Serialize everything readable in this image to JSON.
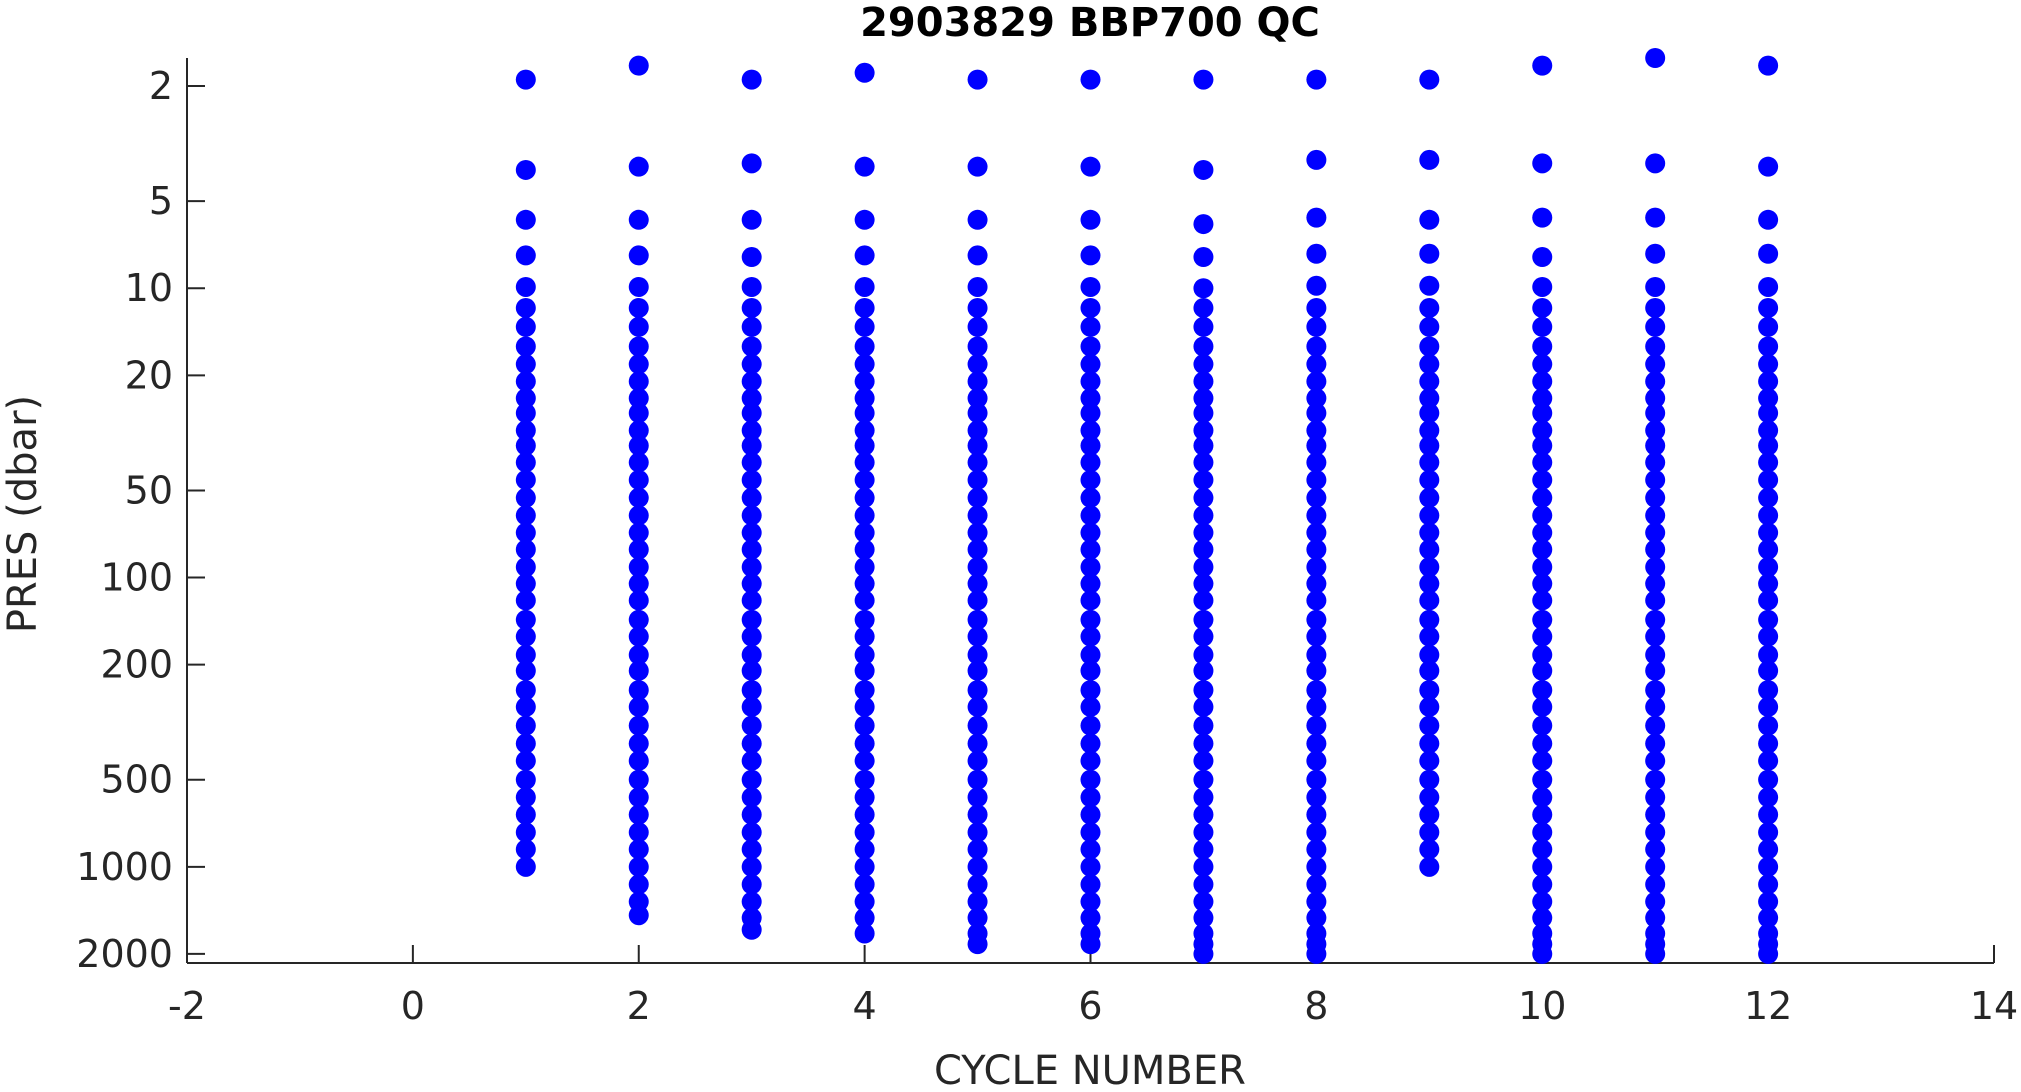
{
  "chart_data": {
    "type": "scatter",
    "title": "2903829 BBP700 QC",
    "xlabel": "CYCLE NUMBER",
    "ylabel": "PRES (dbar)",
    "xlim": [
      -2,
      14
    ],
    "xticks": [
      -2,
      0,
      2,
      4,
      6,
      8,
      10,
      12,
      14
    ],
    "ylim": [
      1.6,
      2150
    ],
    "yticks": [
      2,
      5,
      10,
      20,
      50,
      100,
      200,
      500,
      1000,
      2000
    ],
    "ylog": true,
    "yreversed": true,
    "color": "#0000ff",
    "series": [
      {
        "x": 1,
        "values": [
          1.9,
          3.9,
          5.8,
          7.7,
          9.9,
          11.7,
          13.6,
          15.9,
          18.3,
          21,
          24,
          27,
          31,
          35,
          40,
          46,
          53,
          61,
          70,
          80,
          92,
          105,
          120,
          140,
          160,
          185,
          210,
          245,
          280,
          325,
          375,
          430,
          500,
          575,
          660,
          760,
          870,
          1000
        ]
      },
      {
        "x": 2,
        "values": [
          1.7,
          3.8,
          5.8,
          7.7,
          9.9,
          11.7,
          13.6,
          15.9,
          18.3,
          21,
          24,
          27,
          31,
          35,
          40,
          46,
          53,
          61,
          70,
          80,
          92,
          105,
          120,
          140,
          160,
          185,
          210,
          245,
          280,
          325,
          375,
          430,
          500,
          575,
          660,
          760,
          870,
          1000,
          1150,
          1320,
          1470
        ]
      },
      {
        "x": 3,
        "values": [
          1.9,
          3.7,
          5.8,
          7.8,
          9.9,
          11.7,
          13.6,
          15.9,
          18.3,
          21,
          24,
          27,
          31,
          35,
          40,
          46,
          53,
          61,
          70,
          80,
          92,
          105,
          120,
          140,
          160,
          185,
          210,
          245,
          280,
          325,
          375,
          430,
          500,
          575,
          660,
          760,
          870,
          1000,
          1150,
          1320,
          1500,
          1650
        ]
      },
      {
        "x": 4,
        "values": [
          1.8,
          3.8,
          5.8,
          7.7,
          9.9,
          11.7,
          13.6,
          15.9,
          18.3,
          21,
          24,
          27,
          31,
          35,
          40,
          46,
          53,
          61,
          70,
          80,
          92,
          105,
          120,
          140,
          160,
          185,
          210,
          245,
          280,
          325,
          375,
          430,
          500,
          575,
          660,
          760,
          870,
          1000,
          1150,
          1320,
          1500,
          1700
        ]
      },
      {
        "x": 5,
        "values": [
          1.9,
          3.8,
          5.8,
          7.7,
          9.9,
          11.7,
          13.6,
          15.9,
          18.3,
          21,
          24,
          27,
          31,
          35,
          40,
          46,
          53,
          61,
          70,
          80,
          92,
          105,
          120,
          140,
          160,
          185,
          210,
          245,
          280,
          325,
          375,
          430,
          500,
          575,
          660,
          760,
          870,
          1000,
          1150,
          1320,
          1500,
          1700,
          1850
        ]
      },
      {
        "x": 6,
        "values": [
          1.9,
          3.8,
          5.8,
          7.7,
          9.9,
          11.7,
          13.6,
          15.9,
          18.3,
          21,
          24,
          27,
          31,
          35,
          40,
          46,
          53,
          61,
          70,
          80,
          92,
          105,
          120,
          140,
          160,
          185,
          210,
          245,
          280,
          325,
          375,
          430,
          500,
          575,
          660,
          760,
          870,
          1000,
          1150,
          1320,
          1500,
          1700,
          1850
        ]
      },
      {
        "x": 7,
        "values": [
          1.9,
          3.9,
          6.0,
          7.8,
          10,
          11.7,
          13.6,
          15.9,
          18.3,
          21,
          24,
          27,
          31,
          35,
          40,
          46,
          53,
          61,
          70,
          80,
          92,
          105,
          120,
          140,
          160,
          185,
          210,
          245,
          280,
          325,
          375,
          430,
          500,
          575,
          660,
          760,
          870,
          1000,
          1150,
          1320,
          1500,
          1700,
          1850,
          2000
        ]
      },
      {
        "x": 8,
        "values": [
          1.9,
          3.6,
          5.7,
          7.6,
          9.8,
          11.7,
          13.6,
          15.9,
          18.3,
          21,
          24,
          27,
          31,
          35,
          40,
          46,
          53,
          61,
          70,
          80,
          92,
          105,
          120,
          140,
          160,
          185,
          210,
          245,
          280,
          325,
          375,
          430,
          500,
          575,
          660,
          760,
          870,
          1000,
          1150,
          1320,
          1500,
          1700,
          1850,
          2000
        ]
      },
      {
        "x": 9,
        "values": [
          1.9,
          3.6,
          5.8,
          7.6,
          9.8,
          11.7,
          13.6,
          15.9,
          18.3,
          21,
          24,
          27,
          31,
          35,
          40,
          46,
          53,
          61,
          70,
          80,
          92,
          105,
          120,
          140,
          160,
          185,
          210,
          245,
          280,
          325,
          375,
          430,
          500,
          575,
          660,
          760,
          870,
          1000
        ]
      },
      {
        "x": 10,
        "values": [
          1.7,
          3.7,
          5.7,
          7.8,
          9.9,
          11.7,
          13.6,
          15.9,
          18.3,
          21,
          24,
          27,
          31,
          35,
          40,
          46,
          53,
          61,
          70,
          80,
          92,
          105,
          120,
          140,
          160,
          185,
          210,
          245,
          280,
          325,
          375,
          430,
          500,
          575,
          660,
          760,
          870,
          1000,
          1150,
          1320,
          1500,
          1700,
          1850,
          2000
        ]
      },
      {
        "x": 11,
        "values": [
          1.6,
          3.7,
          5.7,
          7.6,
          9.9,
          11.7,
          13.6,
          15.9,
          18.3,
          21,
          24,
          27,
          31,
          35,
          40,
          46,
          53,
          61,
          70,
          80,
          92,
          105,
          120,
          140,
          160,
          185,
          210,
          245,
          280,
          325,
          375,
          430,
          500,
          575,
          660,
          760,
          870,
          1000,
          1150,
          1320,
          1500,
          1700,
          1850,
          2000
        ]
      },
      {
        "x": 12,
        "values": [
          1.7,
          3.8,
          5.8,
          7.6,
          9.9,
          11.7,
          13.6,
          15.9,
          18.3,
          21,
          24,
          27,
          31,
          35,
          40,
          46,
          53,
          61,
          70,
          80,
          92,
          105,
          120,
          140,
          160,
          185,
          210,
          245,
          280,
          325,
          375,
          430,
          500,
          575,
          660,
          760,
          870,
          1000,
          1150,
          1320,
          1500,
          1700,
          1850,
          2000
        ]
      }
    ]
  }
}
